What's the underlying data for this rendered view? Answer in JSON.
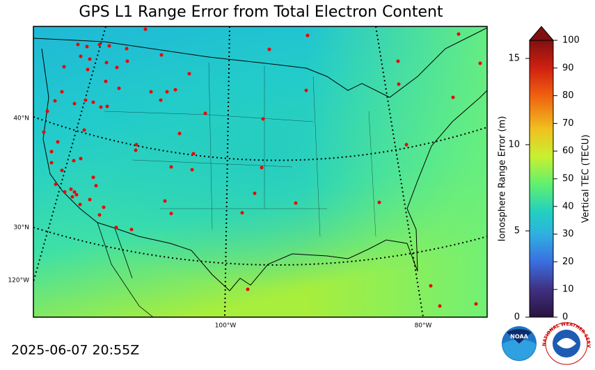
{
  "title": "GPS L1 Range Error from Total Electron Content",
  "timestamp": "2025-06-07 20:55Z",
  "map": {
    "lat_labels": [
      "40°N",
      "30°N"
    ],
    "lon_labels": [
      "120°W",
      "100°W",
      "80°W"
    ]
  },
  "colorbar": {
    "left_label": "Ionosphere Range Error (m)",
    "right_label": "Vertical TEC (TECU)",
    "left_ticks": [
      0,
      5,
      10,
      15
    ],
    "left_lim": [
      0,
      16.05
    ],
    "right_ticks": [
      0,
      10,
      20,
      30,
      40,
      50,
      60,
      70,
      80,
      90,
      100
    ],
    "right_lim": [
      0,
      100
    ]
  },
  "logos": {
    "noaa": "NOAA",
    "nws": "NATIONAL WEATHER SERVICE"
  }
}
